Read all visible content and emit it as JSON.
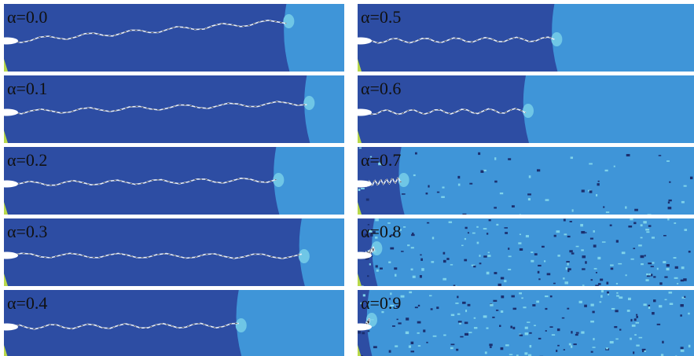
{
  "panels": [
    {
      "label": "α=0.0"
    },
    {
      "label": "α=0.1"
    },
    {
      "label": "α=0.2"
    },
    {
      "label": "α=0.3"
    },
    {
      "label": "α=0.4"
    },
    {
      "label": "α=0.5"
    },
    {
      "label": "α=0.6"
    },
    {
      "label": "α=0.7"
    },
    {
      "label": "α=0.8"
    },
    {
      "label": "α=0.9"
    }
  ]
}
